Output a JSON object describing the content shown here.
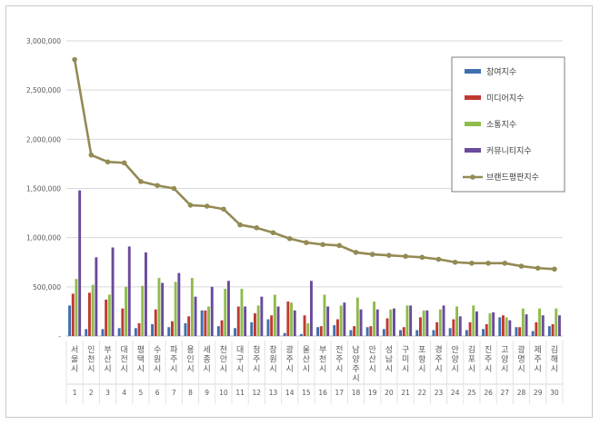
{
  "chart_data": {
    "type": "bar",
    "categories": [
      "서울시",
      "인천시",
      "부산시",
      "대전시",
      "평택시",
      "수원시",
      "파주시",
      "용인시",
      "세종시",
      "천안시",
      "대구시",
      "청주시",
      "창원시",
      "광주시",
      "울산시",
      "부천시",
      "전주시",
      "남양주시",
      "안산시",
      "성남시",
      "구미시",
      "포항시",
      "경주시",
      "안양시",
      "김포시",
      "진주시",
      "고양시",
      "광명시",
      "제주시",
      "김해시"
    ],
    "rank_labels": [
      "1",
      "2",
      "3",
      "4",
      "5",
      "6",
      "7",
      "8",
      "9",
      "10",
      "11",
      "12",
      "13",
      "14",
      "15",
      "16",
      "17",
      "18",
      "19",
      "20",
      "21",
      "22",
      "23",
      "24",
      "25",
      "26",
      "27",
      "28",
      "29",
      "30"
    ],
    "series": [
      {
        "name": "참여지수",
        "type": "bar",
        "color": "#3f6fae",
        "values": [
          310000,
          70000,
          70000,
          80000,
          80000,
          120000,
          90000,
          130000,
          260000,
          100000,
          80000,
          140000,
          170000,
          30000,
          20000,
          90000,
          110000,
          60000,
          90000,
          70000,
          60000,
          60000,
          60000,
          80000,
          60000,
          70000,
          190000,
          90000,
          50000,
          100000
        ]
      },
      {
        "name": "미디어지수",
        "type": "bar",
        "color": "#c0392f",
        "values": [
          430000,
          440000,
          370000,
          280000,
          130000,
          270000,
          150000,
          200000,
          260000,
          160000,
          300000,
          230000,
          210000,
          350000,
          210000,
          100000,
          170000,
          100000,
          100000,
          180000,
          90000,
          190000,
          140000,
          170000,
          140000,
          120000,
          210000,
          90000,
          140000,
          120000
        ]
      },
      {
        "name": "소통지수",
        "type": "bar",
        "color": "#8fbc4c",
        "values": [
          580000,
          520000,
          420000,
          500000,
          510000,
          590000,
          550000,
          590000,
          300000,
          480000,
          480000,
          310000,
          420000,
          340000,
          130000,
          420000,
          310000,
          390000,
          350000,
          270000,
          310000,
          260000,
          270000,
          300000,
          310000,
          230000,
          190000,
          280000,
          280000,
          280000
        ]
      },
      {
        "name": "커뮤니티지수",
        "type": "bar",
        "color": "#6a4a9c",
        "values": [
          1480000,
          800000,
          900000,
          910000,
          850000,
          540000,
          640000,
          400000,
          500000,
          560000,
          300000,
          400000,
          300000,
          260000,
          560000,
          300000,
          340000,
          270000,
          270000,
          280000,
          310000,
          260000,
          310000,
          200000,
          250000,
          240000,
          160000,
          220000,
          210000,
          210000
        ]
      },
      {
        "name": "브랜드평판지수",
        "type": "line",
        "color": "#948a54",
        "values": [
          2810000,
          1840000,
          1770000,
          1760000,
          1570000,
          1530000,
          1500000,
          1330000,
          1320000,
          1290000,
          1130000,
          1100000,
          1050000,
          990000,
          950000,
          930000,
          920000,
          850000,
          830000,
          820000,
          810000,
          800000,
          780000,
          750000,
          740000,
          740000,
          740000,
          710000,
          690000,
          680000
        ]
      }
    ],
    "y_ticks": [
      "-",
      "500,000",
      "1,000,000",
      "1,500,000",
      "2,000,000",
      "2,500,000",
      "3,000,000"
    ],
    "ylim": [
      0,
      3000000
    ],
    "grid": true,
    "legend": "right"
  }
}
